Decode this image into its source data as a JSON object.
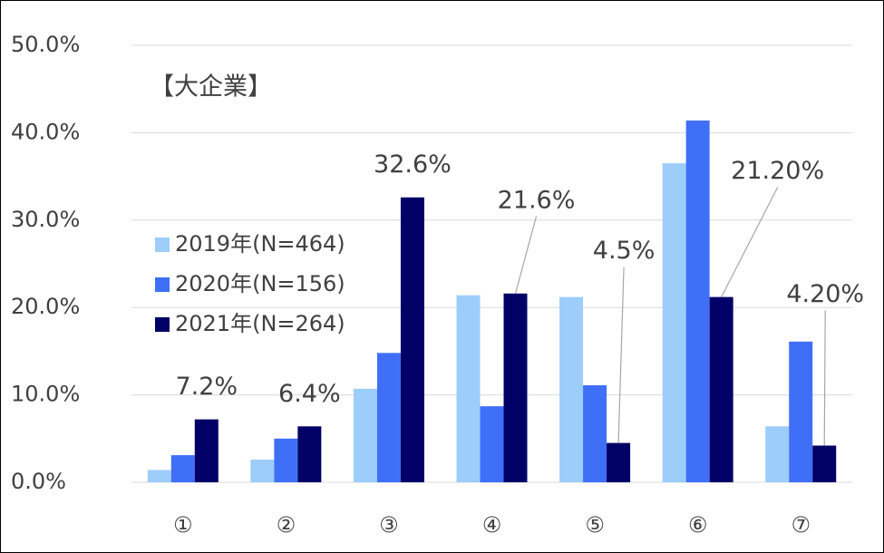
{
  "chart_data": {
    "type": "bar",
    "annotation": "【大企業】",
    "categories": [
      "①",
      "②",
      "③",
      "④",
      "⑤",
      "⑥",
      "⑦"
    ],
    "series": [
      {
        "name": "2019年(N=464)",
        "color": "#9dcdfb",
        "values": [
          1.4,
          2.6,
          10.7,
          21.4,
          21.2,
          36.5,
          6.4
        ]
      },
      {
        "name": "2020年(N=156)",
        "color": "#3f6ff7",
        "values": [
          3.1,
          5.0,
          14.8,
          8.7,
          11.1,
          41.4,
          16.1
        ]
      },
      {
        "name": "2021年(N=264)",
        "color": "#000066",
        "values": [
          7.2,
          6.4,
          32.6,
          21.6,
          4.5,
          21.2,
          4.2
        ],
        "value_labels": [
          "7.2%",
          "6.4%",
          "32.6%",
          "21.6%",
          "4.5%",
          "21.20%",
          "4.20%"
        ]
      }
    ],
    "ylim": [
      0,
      50
    ],
    "yticks": [
      {
        "value": 0,
        "label": "0.0%"
      },
      {
        "value": 10,
        "label": "10.0%"
      },
      {
        "value": 20,
        "label": "20.0%"
      },
      {
        "value": 30,
        "label": "30.0%"
      },
      {
        "value": 40,
        "label": "40.0%"
      },
      {
        "value": 50,
        "label": "50.0%"
      }
    ],
    "grid": true,
    "legend": "left"
  }
}
